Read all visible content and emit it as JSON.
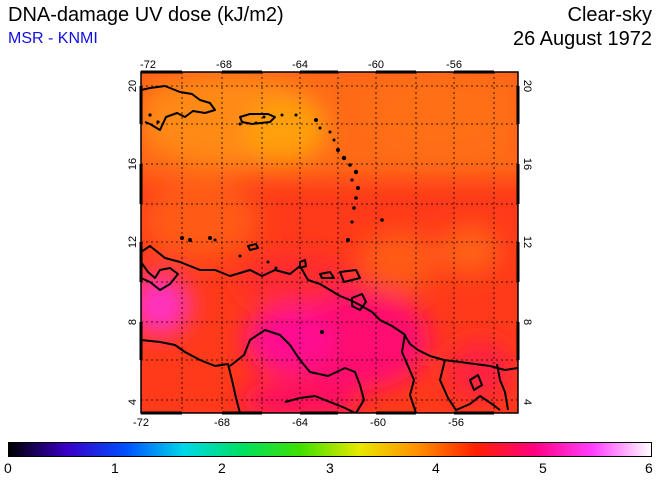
{
  "header": {
    "title": "DNA-damage UV dose (kJ/m2)",
    "subtitle": "MSR - KNMI",
    "product": "Clear-sky",
    "date": "26 August 1972"
  },
  "map": {
    "lon_ticks": [
      "-72",
      "-68",
      "-64",
      "-60",
      "-56"
    ],
    "lat_ticks": [
      "20",
      "16",
      "12",
      "8",
      "4"
    ],
    "lon_range": [
      -72,
      -52
    ],
    "lat_range": [
      3.5,
      20.5
    ],
    "region": "Caribbean / northern South America"
  },
  "colorbar": {
    "labels": [
      "0",
      "1",
      "2",
      "3",
      "4",
      "5",
      "6"
    ],
    "range": [
      0,
      6
    ],
    "colors": [
      "#000000",
      "#3a00c8",
      "#0050ff",
      "#00d8e8",
      "#00e060",
      "#40e000",
      "#e8e800",
      "#ff9000",
      "#ff2000",
      "#ff0080",
      "#ff40ff",
      "#ffffff"
    ]
  }
}
